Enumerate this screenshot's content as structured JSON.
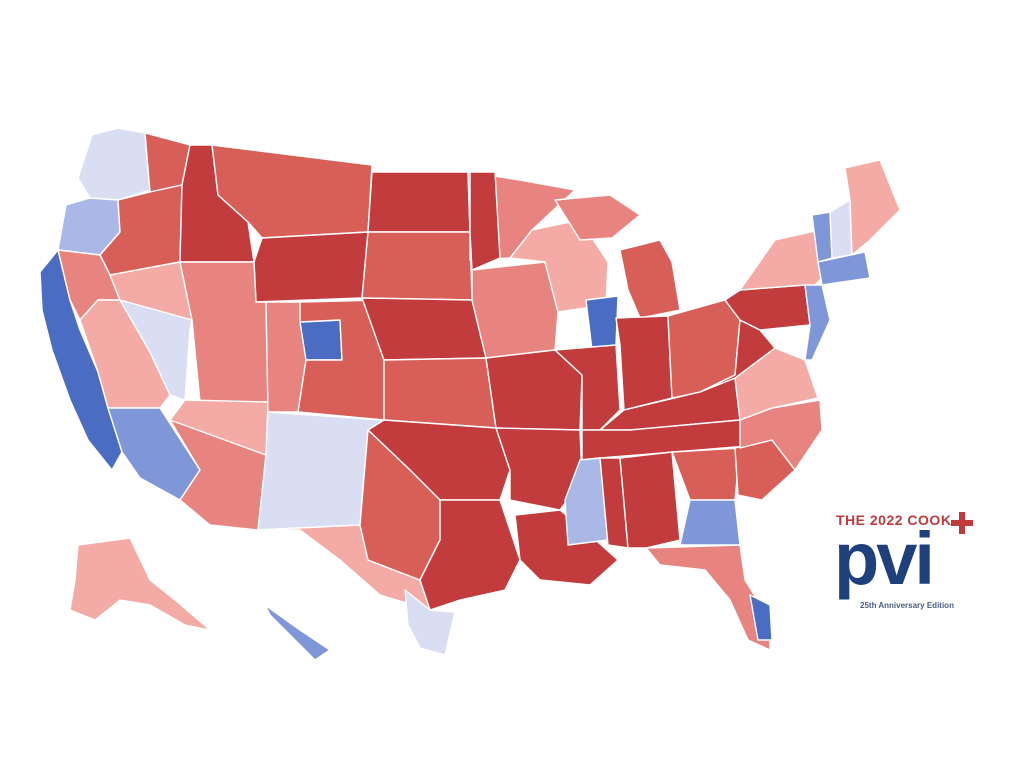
{
  "logo": {
    "title": "THE 2022 COOK",
    "wordmark": "pvi",
    "edition": "25th Anniversary Edition",
    "icon": "plus-cross-icon"
  },
  "colors": {
    "solid_r": "#c23b3d",
    "likely_r": "#d75f58",
    "lean_r": "#e8847f",
    "tilt_r": "#f4aaa5",
    "even": "#eef0f7",
    "tilt_d": "#d9def2",
    "lean_d": "#a9b8e6",
    "likely_d": "#7f97d9",
    "solid_d": "#4a6dc3",
    "border": "#ffffff",
    "logo_red": "#c0393b",
    "logo_blue": "#1f3f7d"
  },
  "regions": [
    {
      "name": "region-washington-west",
      "fill": "tilt_d"
    },
    {
      "name": "region-washington-east",
      "fill": "likely_r"
    },
    {
      "name": "region-oregon-west",
      "fill": "lean_d"
    },
    {
      "name": "region-oregon-east",
      "fill": "likely_r"
    },
    {
      "name": "region-california-coast",
      "fill": "solid_d"
    },
    {
      "name": "region-california-north",
      "fill": "lean_r"
    },
    {
      "name": "region-california-central",
      "fill": "tilt_r"
    },
    {
      "name": "region-california-south",
      "fill": "likely_d"
    },
    {
      "name": "region-nevada-north",
      "fill": "tilt_r"
    },
    {
      "name": "region-nevada-south",
      "fill": "tilt_d"
    },
    {
      "name": "region-idaho",
      "fill": "solid_r"
    },
    {
      "name": "region-montana",
      "fill": "likely_r"
    },
    {
      "name": "region-wyoming",
      "fill": "solid_r"
    },
    {
      "name": "region-utah",
      "fill": "lean_r"
    },
    {
      "name": "region-arizona-north",
      "fill": "tilt_r"
    },
    {
      "name": "region-arizona-south",
      "fill": "lean_r"
    },
    {
      "name": "region-colorado-west",
      "fill": "lean_r"
    },
    {
      "name": "region-colorado-denver",
      "fill": "solid_d"
    },
    {
      "name": "region-colorado-east",
      "fill": "likely_r"
    },
    {
      "name": "region-new-mexico",
      "fill": "tilt_d"
    },
    {
      "name": "region-north-dakota",
      "fill": "solid_r"
    },
    {
      "name": "region-south-dakota",
      "fill": "likely_r"
    },
    {
      "name": "region-nebraska",
      "fill": "solid_r"
    },
    {
      "name": "region-kansas",
      "fill": "likely_r"
    },
    {
      "name": "region-oklahoma",
      "fill": "solid_r"
    },
    {
      "name": "region-texas-west",
      "fill": "tilt_r"
    },
    {
      "name": "region-texas-north",
      "fill": "likely_r"
    },
    {
      "name": "region-texas-east",
      "fill": "solid_r"
    },
    {
      "name": "region-texas-south",
      "fill": "tilt_d"
    },
    {
      "name": "region-minnesota-north",
      "fill": "lean_r"
    },
    {
      "name": "region-minnesota-west",
      "fill": "solid_r"
    },
    {
      "name": "region-iowa",
      "fill": "lean_r"
    },
    {
      "name": "region-missouri",
      "fill": "solid_r"
    },
    {
      "name": "region-arkansas",
      "fill": "solid_r"
    },
    {
      "name": "region-louisiana",
      "fill": "solid_r"
    },
    {
      "name": "region-wisconsin",
      "fill": "tilt_r"
    },
    {
      "name": "region-michigan-upper",
      "fill": "lean_r"
    },
    {
      "name": "region-michigan-lower",
      "fill": "likely_r"
    },
    {
      "name": "region-illinois-north",
      "fill": "solid_d"
    },
    {
      "name": "region-illinois-south",
      "fill": "solid_r"
    },
    {
      "name": "region-indiana",
      "fill": "solid_r"
    },
    {
      "name": "region-ohio",
      "fill": "likely_r"
    },
    {
      "name": "region-kentucky",
      "fill": "solid_r"
    },
    {
      "name": "region-tennessee",
      "fill": "solid_r"
    },
    {
      "name": "region-mississippi-west",
      "fill": "lean_d"
    },
    {
      "name": "region-mississippi-east",
      "fill": "solid_r"
    },
    {
      "name": "region-alabama",
      "fill": "solid_r"
    },
    {
      "name": "region-georgia-north",
      "fill": "likely_r"
    },
    {
      "name": "region-georgia-south",
      "fill": "likely_d"
    },
    {
      "name": "region-florida",
      "fill": "lean_r"
    },
    {
      "name": "region-florida-south",
      "fill": "solid_d"
    },
    {
      "name": "region-south-carolina",
      "fill": "likely_r"
    },
    {
      "name": "region-north-carolina",
      "fill": "lean_r"
    },
    {
      "name": "region-virginia",
      "fill": "tilt_r"
    },
    {
      "name": "region-west-virginia",
      "fill": "solid_r"
    },
    {
      "name": "region-pennsylvania",
      "fill": "solid_r"
    },
    {
      "name": "region-new-york",
      "fill": "tilt_r"
    },
    {
      "name": "region-vermont",
      "fill": "likely_d"
    },
    {
      "name": "region-new-hampshire",
      "fill": "tilt_d"
    },
    {
      "name": "region-maine",
      "fill": "tilt_r"
    },
    {
      "name": "region-massachusetts",
      "fill": "likely_d"
    },
    {
      "name": "region-mid-atlantic",
      "fill": "likely_d"
    },
    {
      "name": "region-alaska",
      "fill": "tilt_r"
    },
    {
      "name": "region-hawaii",
      "fill": "likely_d"
    }
  ]
}
